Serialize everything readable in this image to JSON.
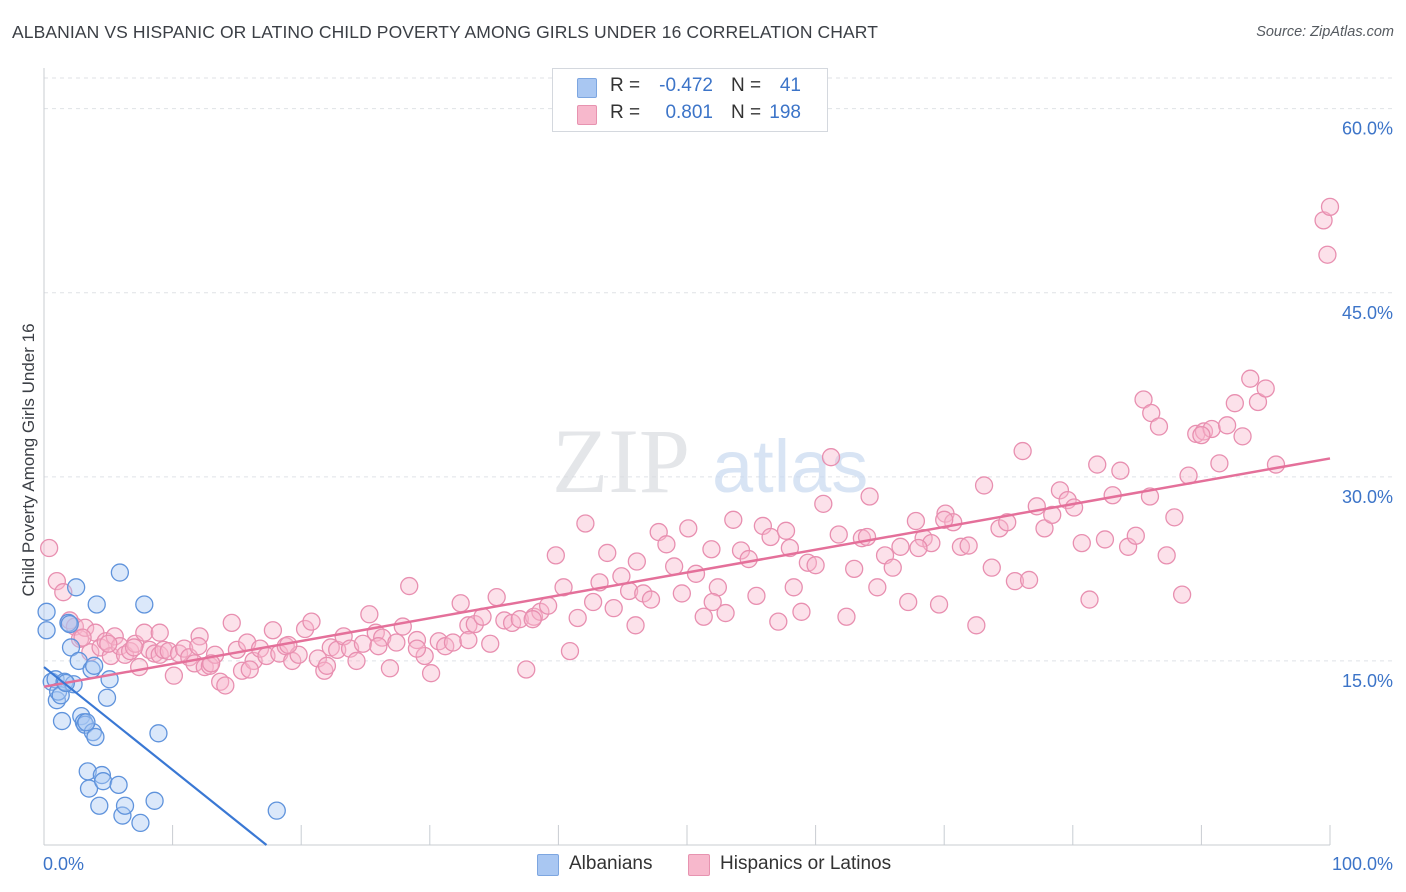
{
  "title": "ALBANIAN VS HISPANIC OR LATINO CHILD POVERTY AMONG GIRLS UNDER 16 CORRELATION CHART",
  "source": "Source: ZipAtlas.com",
  "watermark": {
    "zip": "ZIP",
    "atlas": "atlas"
  },
  "legend": {
    "r_label": "R =",
    "n_label": "N =",
    "rows": [
      {
        "r": "-0.472",
        "n": "41",
        "color": "#a9c7f2",
        "border": "#7da6e0"
      },
      {
        "r": "0.801",
        "n": "198",
        "color": "#f7b8cc",
        "border": "#e793b0"
      }
    ]
  },
  "bottom_legend": [
    {
      "label": "Albanians",
      "color": "#a9c7f2",
      "border": "#7da6e0"
    },
    {
      "label": "Hispanics or Latinos",
      "color": "#f7b8cc",
      "border": "#e793b0"
    }
  ],
  "chart_data": {
    "type": "scatter",
    "title": "ALBANIAN VS HISPANIC OR LATINO CHILD POVERTY AMONG GIRLS UNDER 16 CORRELATION CHART",
    "xlabel": "",
    "ylabel": "Child Poverty Among Girls Under 16",
    "xlim": [
      0,
      100
    ],
    "ylim": [
      0,
      62.5
    ],
    "x_tick_labels": [
      "0.0%",
      "100.0%"
    ],
    "y_ticks": [
      15,
      30,
      45,
      60
    ],
    "y_tick_labels": [
      "15.0%",
      "30.0%",
      "45.0%",
      "60.0%"
    ],
    "grid": true,
    "legend_position": "top-center",
    "colors": {
      "albanians": "#3a78d4",
      "hispanics": "#e4709a",
      "axis_text": "#3c74c8"
    },
    "series": [
      {
        "name": "Albanians",
        "r": -0.472,
        "n": 41,
        "trend": {
          "x": [
            0,
            17.3
          ],
          "y": [
            14.5,
            0
          ]
        },
        "points": [
          [
            0.2,
            17.5
          ],
          [
            0.2,
            19.0
          ],
          [
            0.6,
            13.3
          ],
          [
            0.9,
            13.5
          ],
          [
            1.0,
            11.8
          ],
          [
            1.1,
            12.5
          ],
          [
            1.3,
            12.2
          ],
          [
            1.4,
            10.1
          ],
          [
            1.6,
            13.3
          ],
          [
            1.9,
            18.1
          ],
          [
            2.1,
            16.1
          ],
          [
            2.3,
            13.1
          ],
          [
            2.5,
            21.0
          ],
          [
            2.7,
            15.0
          ],
          [
            2.9,
            10.5
          ],
          [
            3.1,
            10.0
          ],
          [
            3.2,
            9.8
          ],
          [
            3.4,
            6.0
          ],
          [
            3.5,
            4.6
          ],
          [
            3.7,
            14.3
          ],
          [
            3.8,
            9.2
          ],
          [
            3.9,
            14.6
          ],
          [
            4.0,
            8.8
          ],
          [
            4.1,
            19.6
          ],
          [
            4.3,
            3.2
          ],
          [
            4.5,
            5.7
          ],
          [
            4.6,
            5.2
          ],
          [
            4.9,
            12.0
          ],
          [
            5.1,
            13.5
          ],
          [
            5.8,
            4.9
          ],
          [
            5.9,
            22.2
          ],
          [
            6.1,
            2.4
          ],
          [
            6.3,
            3.2
          ],
          [
            7.5,
            1.8
          ],
          [
            7.8,
            19.6
          ],
          [
            8.6,
            3.6
          ],
          [
            8.9,
            9.1
          ],
          [
            18.1,
            2.8
          ],
          [
            1.7,
            13.2
          ],
          [
            2.0,
            18.0
          ],
          [
            3.3,
            10.0
          ]
        ]
      },
      {
        "name": "Hispanics or Latinos",
        "r": 0.801,
        "n": 198,
        "trend": {
          "x": [
            0,
            100
          ],
          "y": [
            12.9,
            31.5
          ]
        },
        "points": [
          [
            0.4,
            24.2
          ],
          [
            1.0,
            21.5
          ],
          [
            1.5,
            20.6
          ],
          [
            2.0,
            18.3
          ],
          [
            2.4,
            17.8
          ],
          [
            2.8,
            16.8
          ],
          [
            3.2,
            17.7
          ],
          [
            3.6,
            15.7
          ],
          [
            4.0,
            17.3
          ],
          [
            4.4,
            16.1
          ],
          [
            4.8,
            16.6
          ],
          [
            5.2,
            15.4
          ],
          [
            5.5,
            17.0
          ],
          [
            5.9,
            16.2
          ],
          [
            6.3,
            15.5
          ],
          [
            6.7,
            15.8
          ],
          [
            7.1,
            16.4
          ],
          [
            7.4,
            14.5
          ],
          [
            7.8,
            17.3
          ],
          [
            8.2,
            15.9
          ],
          [
            8.6,
            15.6
          ],
          [
            9.0,
            15.5
          ],
          [
            9.3,
            15.9
          ],
          [
            9.7,
            15.8
          ],
          [
            10.1,
            13.8
          ],
          [
            10.5,
            15.6
          ],
          [
            10.9,
            16.0
          ],
          [
            11.3,
            15.3
          ],
          [
            11.7,
            14.8
          ],
          [
            12.1,
            17.0
          ],
          [
            12.5,
            14.5
          ],
          [
            12.9,
            14.6
          ],
          [
            13.3,
            15.5
          ],
          [
            13.7,
            13.3
          ],
          [
            14.1,
            13.0
          ],
          [
            14.6,
            18.1
          ],
          [
            15.0,
            15.9
          ],
          [
            15.4,
            14.2
          ],
          [
            15.8,
            16.5
          ],
          [
            16.3,
            15.0
          ],
          [
            16.8,
            16.0
          ],
          [
            17.3,
            15.4
          ],
          [
            17.8,
            17.5
          ],
          [
            18.3,
            15.6
          ],
          [
            18.8,
            16.2
          ],
          [
            19.3,
            15.0
          ],
          [
            19.8,
            15.5
          ],
          [
            20.3,
            17.6
          ],
          [
            20.8,
            18.2
          ],
          [
            21.3,
            15.2
          ],
          [
            21.8,
            14.2
          ],
          [
            22.3,
            16.1
          ],
          [
            22.8,
            15.9
          ],
          [
            23.3,
            17.0
          ],
          [
            23.8,
            16.0
          ],
          [
            24.3,
            15.0
          ],
          [
            24.8,
            16.4
          ],
          [
            25.3,
            18.8
          ],
          [
            25.8,
            17.3
          ],
          [
            26.3,
            16.9
          ],
          [
            26.9,
            14.4
          ],
          [
            27.4,
            16.5
          ],
          [
            27.9,
            17.8
          ],
          [
            28.4,
            21.1
          ],
          [
            29.0,
            16.7
          ],
          [
            29.6,
            15.4
          ],
          [
            30.1,
            14.0
          ],
          [
            30.7,
            16.6
          ],
          [
            31.2,
            16.2
          ],
          [
            31.8,
            16.5
          ],
          [
            32.4,
            19.7
          ],
          [
            33.0,
            17.9
          ],
          [
            33.5,
            18.0
          ],
          [
            34.1,
            18.6
          ],
          [
            34.7,
            16.4
          ],
          [
            35.2,
            20.2
          ],
          [
            35.8,
            18.3
          ],
          [
            36.4,
            18.1
          ],
          [
            37.0,
            18.4
          ],
          [
            37.5,
            14.3
          ],
          [
            38.1,
            18.6
          ],
          [
            38.6,
            19.0
          ],
          [
            39.2,
            19.5
          ],
          [
            39.8,
            23.6
          ],
          [
            40.4,
            21.0
          ],
          [
            40.9,
            15.8
          ],
          [
            41.5,
            18.5
          ],
          [
            42.1,
            26.2
          ],
          [
            42.7,
            19.8
          ],
          [
            43.2,
            21.4
          ],
          [
            43.8,
            23.8
          ],
          [
            44.3,
            19.3
          ],
          [
            44.9,
            21.9
          ],
          [
            45.5,
            20.7
          ],
          [
            46.1,
            23.1
          ],
          [
            46.6,
            20.5
          ],
          [
            47.2,
            20.0
          ],
          [
            47.8,
            25.5
          ],
          [
            48.4,
            24.5
          ],
          [
            49.0,
            22.7
          ],
          [
            49.6,
            20.5
          ],
          [
            50.1,
            25.8
          ],
          [
            50.7,
            22.1
          ],
          [
            51.3,
            18.6
          ],
          [
            51.9,
            24.1
          ],
          [
            52.4,
            21.0
          ],
          [
            53.0,
            18.9
          ],
          [
            53.6,
            26.5
          ],
          [
            54.2,
            24.0
          ],
          [
            54.8,
            23.3
          ],
          [
            55.4,
            20.3
          ],
          [
            55.9,
            26.0
          ],
          [
            56.5,
            25.1
          ],
          [
            57.1,
            18.2
          ],
          [
            57.7,
            25.6
          ],
          [
            58.3,
            21.0
          ],
          [
            58.9,
            19.0
          ],
          [
            59.4,
            23.0
          ],
          [
            60.0,
            22.8
          ],
          [
            60.6,
            27.8
          ],
          [
            61.2,
            31.6
          ],
          [
            61.8,
            25.3
          ],
          [
            62.4,
            18.6
          ],
          [
            63.0,
            22.5
          ],
          [
            63.6,
            25.0
          ],
          [
            64.2,
            28.4
          ],
          [
            64.8,
            21.0
          ],
          [
            65.4,
            23.6
          ],
          [
            66.0,
            22.6
          ],
          [
            66.6,
            24.3
          ],
          [
            67.2,
            19.8
          ],
          [
            67.8,
            26.4
          ],
          [
            68.4,
            25.0
          ],
          [
            69.0,
            24.6
          ],
          [
            69.6,
            19.6
          ],
          [
            70.1,
            27.0
          ],
          [
            70.7,
            26.3
          ],
          [
            71.3,
            24.3
          ],
          [
            71.9,
            24.4
          ],
          [
            72.5,
            17.9
          ],
          [
            73.1,
            29.3
          ],
          [
            73.7,
            22.6
          ],
          [
            74.3,
            25.8
          ],
          [
            74.9,
            26.3
          ],
          [
            75.5,
            21.5
          ],
          [
            76.1,
            32.1
          ],
          [
            76.6,
            21.6
          ],
          [
            77.2,
            27.6
          ],
          [
            77.8,
            25.8
          ],
          [
            78.4,
            26.9
          ],
          [
            79.0,
            28.9
          ],
          [
            79.6,
            28.1
          ],
          [
            80.1,
            27.5
          ],
          [
            80.7,
            24.6
          ],
          [
            81.3,
            20.0
          ],
          [
            81.9,
            31.0
          ],
          [
            82.5,
            24.9
          ],
          [
            83.1,
            28.5
          ],
          [
            83.7,
            30.5
          ],
          [
            84.3,
            24.3
          ],
          [
            84.9,
            25.2
          ],
          [
            85.5,
            36.3
          ],
          [
            86.1,
            35.2
          ],
          [
            86.7,
            34.1
          ],
          [
            87.3,
            23.6
          ],
          [
            87.9,
            26.7
          ],
          [
            88.5,
            20.4
          ],
          [
            89.0,
            30.1
          ],
          [
            89.6,
            33.5
          ],
          [
            90.2,
            33.7
          ],
          [
            90.8,
            33.9
          ],
          [
            91.4,
            31.1
          ],
          [
            92.0,
            34.2
          ],
          [
            92.6,
            36.0
          ],
          [
            93.2,
            33.3
          ],
          [
            93.8,
            38.0
          ],
          [
            94.4,
            36.1
          ],
          [
            95.0,
            37.2
          ],
          [
            99.5,
            50.9
          ],
          [
            99.8,
            48.1
          ],
          [
            100.0,
            52.0
          ],
          [
            86.0,
            28.4
          ],
          [
            68.0,
            24.2
          ],
          [
            58.0,
            24.2
          ],
          [
            46.0,
            17.9
          ],
          [
            38.0,
            18.4
          ],
          [
            29.0,
            16.0
          ],
          [
            22.0,
            14.6
          ],
          [
            16.0,
            14.3
          ],
          [
            12.0,
            16.2
          ],
          [
            9.0,
            17.3
          ],
          [
            5.0,
            16.4
          ],
          [
            3.0,
            16.9
          ],
          [
            90.0,
            33.4
          ],
          [
            95.8,
            31.0
          ],
          [
            70.0,
            26.5
          ],
          [
            64.0,
            25.1
          ],
          [
            52.0,
            19.8
          ],
          [
            33.0,
            16.7
          ],
          [
            26.0,
            16.2
          ],
          [
            19.0,
            16.3
          ],
          [
            13.0,
            14.8
          ],
          [
            7.0,
            16.1
          ]
        ]
      }
    ]
  }
}
